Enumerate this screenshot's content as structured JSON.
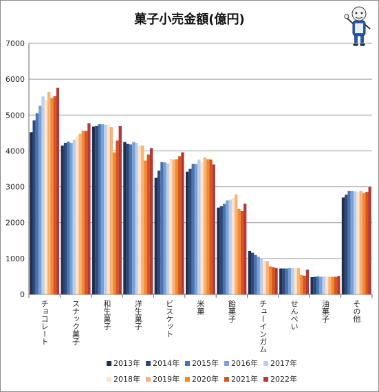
{
  "title": "菓子小売金額(億円)",
  "chart_data": {
    "type": "bar",
    "title": "菓子小売金額(億円)",
    "categories": [
      "チョコレート",
      "スナック菓子",
      "和生菓子",
      "洋生菓子",
      "ビスケット",
      "米菓",
      "飴菓子",
      "チューインガム",
      "せんべい",
      "油菓子",
      "その他"
    ],
    "ylim": [
      0,
      7000
    ],
    "yticks": [
      0,
      1000,
      2000,
      3000,
      4000,
      5000,
      6000,
      7000
    ],
    "grid": true,
    "legend_position": "bottom",
    "series": [
      {
        "name": "2013年",
        "color": "#1f2f4d",
        "values": [
          4520,
          4150,
          4680,
          4250,
          3250,
          3420,
          2420,
          1210,
          720,
          480,
          2700
        ]
      },
      {
        "name": "2014年",
        "color": "#2e4a78",
        "values": [
          4850,
          4220,
          4700,
          4200,
          3450,
          3500,
          2460,
          1160,
          720,
          490,
          2780
        ]
      },
      {
        "name": "2015年",
        "color": "#4a73b0",
        "values": [
          5050,
          4260,
          4750,
          4180,
          3690,
          3640,
          2520,
          1100,
          720,
          500,
          2880
        ]
      },
      {
        "name": "2016年",
        "color": "#7aa1d6",
        "values": [
          5260,
          4220,
          4750,
          4250,
          3680,
          3640,
          2620,
          1050,
          730,
          490,
          2880
        ]
      },
      {
        "name": "2017年",
        "color": "#b9d0ec",
        "values": [
          5520,
          4310,
          4730,
          4220,
          3650,
          3760,
          2640,
          1000,
          730,
          500,
          2870
        ]
      },
      {
        "name": "2018年",
        "color": "#fde3cc",
        "values": [
          5420,
          4400,
          4740,
          4150,
          3780,
          3680,
          2680,
          940,
          730,
          490,
          2860
        ]
      },
      {
        "name": "2019年",
        "color": "#f7b27a",
        "values": [
          5640,
          4480,
          4660,
          4150,
          3760,
          3820,
          2790,
          920,
          730,
          490,
          2880
        ]
      },
      {
        "name": "2020年",
        "color": "#f28a30",
        "values": [
          5480,
          4560,
          3960,
          3730,
          3770,
          3770,
          2380,
          780,
          540,
          490,
          2820
        ]
      },
      {
        "name": "2021年",
        "color": "#d9541e",
        "values": [
          5530,
          4560,
          4290,
          3900,
          3850,
          3760,
          2320,
          760,
          520,
          490,
          2860
        ]
      },
      {
        "name": "2022年",
        "color": "#b23a3a",
        "values": [
          5760,
          4770,
          4700,
          4080,
          3960,
          3620,
          2530,
          730,
          690,
          510,
          2990
        ]
      }
    ]
  }
}
